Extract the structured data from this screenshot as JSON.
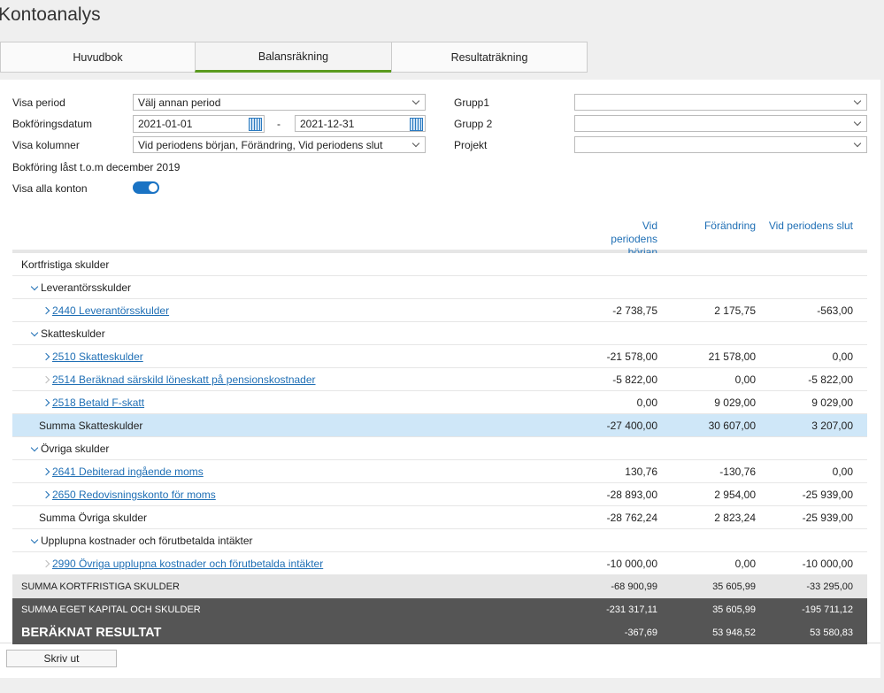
{
  "header": {
    "title": "Kontoanalys"
  },
  "tabs": [
    {
      "label": "Huvudbok"
    },
    {
      "label": "Balansräkning",
      "active": true
    },
    {
      "label": "Resultaträkning"
    }
  ],
  "form": {
    "left": [
      {
        "label": "Visa period",
        "value": "Välj annan period"
      },
      {
        "label": "Bokföringsdatum",
        "from": "2021-01-01",
        "separator": "-",
        "to": "2021-12-31"
      },
      {
        "label": "Visa kolumner",
        "value": "Vid periodens början, Förändring, Vid periodens slut"
      }
    ],
    "right": [
      {
        "label": "Grupp1"
      },
      {
        "label": "Grupp 2"
      },
      {
        "label": "Projekt"
      }
    ],
    "lock_note": "Bokföring låst t.o.m december 2019",
    "show_all": {
      "label": "Visa alla konton",
      "on": true
    }
  },
  "table": {
    "columns": [
      "Vid periodens början",
      "Förändring",
      "Vid periodens slut"
    ],
    "rows": [
      {
        "label": "Kortfristiga skulder",
        "style": "section"
      },
      {
        "label": "Leverantörsskulder",
        "style": "group"
      },
      {
        "label": "2440 Leverantörsskulder",
        "style": "account",
        "values": [
          "-2 738,75",
          "2 175,75",
          "-563,00"
        ]
      },
      {
        "label": "Skatteskulder",
        "style": "group"
      },
      {
        "label": "2510 Skatteskulder",
        "style": "account",
        "values": [
          "-21 578,00",
          "21 578,00",
          "0,00"
        ]
      },
      {
        "label": "2514 Beräknad särskild löneskatt på pensionskostnader",
        "style": "account",
        "expandable": false,
        "values": [
          "-5 822,00",
          "0,00",
          "-5 822,00"
        ]
      },
      {
        "label": "2518 Betald F-skatt",
        "style": "account",
        "values": [
          "0,00",
          "9 029,00",
          "9 029,00"
        ]
      },
      {
        "label": "Summa Skatteskulder",
        "style": "sum-highlight",
        "values": [
          "-27 400,00",
          "30 607,00",
          "3 207,00"
        ]
      },
      {
        "label": "Övriga skulder",
        "style": "group"
      },
      {
        "label": "2641 Debiterad ingående moms",
        "style": "account",
        "values": [
          "130,76",
          "-130,76",
          "0,00"
        ]
      },
      {
        "label": "2650 Redovisningskonto för moms",
        "style": "account",
        "values": [
          "-28 893,00",
          "2 954,00",
          "-25 939,00"
        ]
      },
      {
        "label": "Summa Övriga skulder",
        "style": "sum",
        "values": [
          "-28 762,24",
          "2 823,24",
          "-25 939,00"
        ]
      },
      {
        "label": "Upplupna kostnader och förutbetalda intäkter",
        "style": "group"
      },
      {
        "label": "2990 Övriga upplupna kostnader och förutbetalda intäkter",
        "style": "account",
        "expandable": false,
        "values": [
          "-10 000,00",
          "0,00",
          "-10 000,00"
        ]
      },
      {
        "label": "SUMMA KORTFRISTIGA SKULDER",
        "style": "total",
        "values": [
          "-68 900,99",
          "35 605,99",
          "-33 295,00"
        ]
      },
      {
        "label": "SUMMA EGET KAPITAL OCH SKULDER",
        "style": "grand",
        "values": [
          "-231 317,11",
          "35 605,99",
          "-195 711,12"
        ]
      },
      {
        "label": "BERÄKNAT RESULTAT",
        "style": "result",
        "values": [
          "-367,69",
          "53 948,52",
          "53 580,83"
        ]
      }
    ]
  },
  "footer": {
    "button": "Skriv ut"
  }
}
